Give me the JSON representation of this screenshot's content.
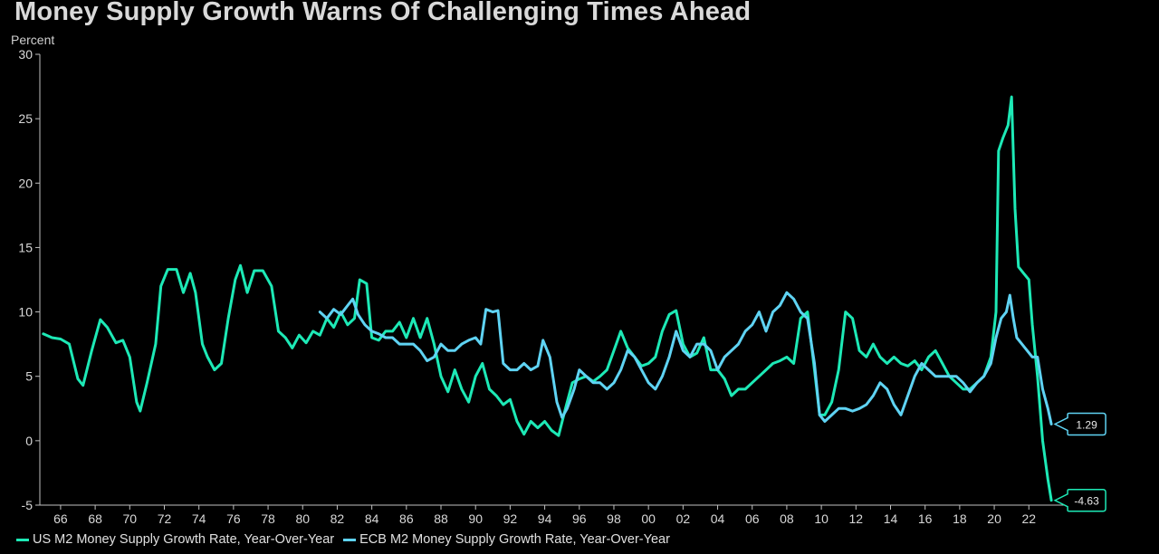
{
  "title": "Money Supply Growth Warns Of Challenging Times Ahead",
  "chart_data": {
    "type": "line",
    "title": "Money Supply Growth Warns Of Challenging Times Ahead",
    "ylabel": "Percent",
    "xlabel": "",
    "ylim": [
      -5,
      30
    ],
    "yticks": [
      30,
      25,
      20,
      15,
      10,
      5,
      0,
      -5
    ],
    "xlim": [
      1964.8,
      2024.5
    ],
    "xticks": [
      1966,
      1968,
      1970,
      1972,
      1974,
      1976,
      1978,
      1980,
      1982,
      1984,
      1986,
      1988,
      1990,
      1992,
      1994,
      1996,
      1998,
      2000,
      2002,
      2004,
      2006,
      2008,
      2010,
      2012,
      2014,
      2016,
      2018,
      2020,
      2022
    ],
    "xtick_labels": [
      "66",
      "68",
      "70",
      "72",
      "74",
      "76",
      "78",
      "80",
      "82",
      "84",
      "86",
      "88",
      "90",
      "92",
      "94",
      "96",
      "98",
      "00",
      "02",
      "04",
      "06",
      "08",
      "10",
      "12",
      "14",
      "16",
      "18",
      "20",
      "22"
    ],
    "grid": false,
    "legend_position": "bottom-left",
    "series": [
      {
        "name": "US M2 Money Supply Growth Rate, Year-Over-Year",
        "color": "#1de9b6",
        "last_value_label": "-4.63",
        "points": [
          [
            1965.0,
            8.3
          ],
          [
            1965.5,
            8.0
          ],
          [
            1966.0,
            7.9
          ],
          [
            1966.5,
            7.5
          ],
          [
            1967.0,
            4.8
          ],
          [
            1967.3,
            4.3
          ],
          [
            1967.8,
            7.0
          ],
          [
            1968.3,
            9.4
          ],
          [
            1968.7,
            8.8
          ],
          [
            1969.2,
            7.6
          ],
          [
            1969.6,
            7.8
          ],
          [
            1970.0,
            6.5
          ],
          [
            1970.4,
            3.0
          ],
          [
            1970.6,
            2.3
          ],
          [
            1971.0,
            4.5
          ],
          [
            1971.5,
            7.5
          ],
          [
            1971.8,
            12.0
          ],
          [
            1972.2,
            13.3
          ],
          [
            1972.7,
            13.3
          ],
          [
            1973.1,
            11.5
          ],
          [
            1973.5,
            13.0
          ],
          [
            1973.8,
            11.5
          ],
          [
            1974.2,
            7.5
          ],
          [
            1974.5,
            6.5
          ],
          [
            1974.9,
            5.5
          ],
          [
            1975.3,
            6.0
          ],
          [
            1975.7,
            9.5
          ],
          [
            1976.1,
            12.5
          ],
          [
            1976.4,
            13.6
          ],
          [
            1976.8,
            11.5
          ],
          [
            1977.2,
            13.2
          ],
          [
            1977.7,
            13.2
          ],
          [
            1978.2,
            12.0
          ],
          [
            1978.6,
            8.5
          ],
          [
            1979.0,
            8.0
          ],
          [
            1979.4,
            7.2
          ],
          [
            1979.8,
            8.2
          ],
          [
            1980.2,
            7.6
          ],
          [
            1980.6,
            8.5
          ],
          [
            1981.0,
            8.2
          ],
          [
            1981.4,
            9.5
          ],
          [
            1981.8,
            8.8
          ],
          [
            1982.2,
            10.0
          ],
          [
            1982.6,
            9.0
          ],
          [
            1983.0,
            9.5
          ],
          [
            1983.3,
            12.5
          ],
          [
            1983.7,
            12.2
          ],
          [
            1984.0,
            8.0
          ],
          [
            1984.4,
            7.8
          ],
          [
            1984.8,
            8.5
          ],
          [
            1985.2,
            8.5
          ],
          [
            1985.6,
            9.2
          ],
          [
            1986.0,
            8.0
          ],
          [
            1986.4,
            9.5
          ],
          [
            1986.8,
            8.0
          ],
          [
            1987.2,
            9.5
          ],
          [
            1987.6,
            7.5
          ],
          [
            1988.0,
            5.0
          ],
          [
            1988.4,
            3.8
          ],
          [
            1988.8,
            5.5
          ],
          [
            1989.2,
            4.0
          ],
          [
            1989.6,
            3.0
          ],
          [
            1990.0,
            5.0
          ],
          [
            1990.4,
            6.0
          ],
          [
            1990.8,
            4.0
          ],
          [
            1991.2,
            3.5
          ],
          [
            1991.6,
            2.8
          ],
          [
            1992.0,
            3.2
          ],
          [
            1992.4,
            1.5
          ],
          [
            1992.8,
            0.5
          ],
          [
            1993.2,
            1.5
          ],
          [
            1993.6,
            1.0
          ],
          [
            1994.0,
            1.5
          ],
          [
            1994.4,
            0.8
          ],
          [
            1994.8,
            0.4
          ],
          [
            1995.2,
            2.5
          ],
          [
            1995.6,
            4.5
          ],
          [
            1996.0,
            4.8
          ],
          [
            1996.4,
            5.0
          ],
          [
            1996.8,
            4.6
          ],
          [
            1997.2,
            5.0
          ],
          [
            1997.6,
            5.5
          ],
          [
            1998.0,
            7.0
          ],
          [
            1998.4,
            8.5
          ],
          [
            1998.8,
            7.2
          ],
          [
            1999.2,
            6.5
          ],
          [
            1999.6,
            5.8
          ],
          [
            2000.0,
            6.0
          ],
          [
            2000.4,
            6.5
          ],
          [
            2000.8,
            8.5
          ],
          [
            2001.2,
            9.8
          ],
          [
            2001.6,
            10.1
          ],
          [
            2002.0,
            7.5
          ],
          [
            2002.4,
            6.5
          ],
          [
            2002.8,
            6.8
          ],
          [
            2003.2,
            8.0
          ],
          [
            2003.6,
            5.5
          ],
          [
            2004.0,
            5.5
          ],
          [
            2004.4,
            4.8
          ],
          [
            2004.8,
            3.5
          ],
          [
            2005.2,
            4.0
          ],
          [
            2005.6,
            4.0
          ],
          [
            2006.0,
            4.5
          ],
          [
            2006.4,
            5.0
          ],
          [
            2006.8,
            5.5
          ],
          [
            2007.2,
            6.0
          ],
          [
            2007.6,
            6.2
          ],
          [
            2008.0,
            6.5
          ],
          [
            2008.4,
            6.0
          ],
          [
            2008.8,
            9.5
          ],
          [
            2009.2,
            10.0
          ],
          [
            2009.6,
            5.5
          ],
          [
            2009.9,
            2.0
          ],
          [
            2010.2,
            2.0
          ],
          [
            2010.6,
            3.0
          ],
          [
            2011.0,
            5.5
          ],
          [
            2011.4,
            10.0
          ],
          [
            2011.8,
            9.5
          ],
          [
            2012.2,
            7.0
          ],
          [
            2012.6,
            6.5
          ],
          [
            2013.0,
            7.5
          ],
          [
            2013.4,
            6.5
          ],
          [
            2013.8,
            6.0
          ],
          [
            2014.2,
            6.5
          ],
          [
            2014.6,
            6.0
          ],
          [
            2015.0,
            5.8
          ],
          [
            2015.4,
            6.2
          ],
          [
            2015.8,
            5.5
          ],
          [
            2016.2,
            6.5
          ],
          [
            2016.6,
            7.0
          ],
          [
            2017.0,
            6.0
          ],
          [
            2017.4,
            5.0
          ],
          [
            2017.8,
            4.5
          ],
          [
            2018.2,
            4.0
          ],
          [
            2018.6,
            4.0
          ],
          [
            2019.0,
            4.5
          ],
          [
            2019.4,
            5.0
          ],
          [
            2019.8,
            6.5
          ],
          [
            2020.1,
            10.0
          ],
          [
            2020.25,
            22.5
          ],
          [
            2020.5,
            23.5
          ],
          [
            2020.8,
            24.5
          ],
          [
            2021.0,
            26.7
          ],
          [
            2021.2,
            18.0
          ],
          [
            2021.4,
            13.5
          ],
          [
            2021.7,
            13.0
          ],
          [
            2022.0,
            12.5
          ],
          [
            2022.2,
            9.0
          ],
          [
            2022.5,
            5.0
          ],
          [
            2022.8,
            0.0
          ],
          [
            2023.1,
            -3.0
          ],
          [
            2023.3,
            -4.63
          ]
        ]
      },
      {
        "name": "ECB M2 Money Supply Growth Rate, Year-Over-Year",
        "color": "#5fd3f3",
        "last_value_label": "1.29",
        "points": [
          [
            1981.0,
            10.0
          ],
          [
            1981.4,
            9.5
          ],
          [
            1981.8,
            10.2
          ],
          [
            1982.2,
            9.8
          ],
          [
            1982.6,
            10.5
          ],
          [
            1982.9,
            11.0
          ],
          [
            1983.2,
            9.8
          ],
          [
            1983.6,
            9.0
          ],
          [
            1984.0,
            8.5
          ],
          [
            1984.4,
            8.3
          ],
          [
            1984.8,
            8.0
          ],
          [
            1985.2,
            8.0
          ],
          [
            1985.6,
            7.5
          ],
          [
            1986.0,
            7.5
          ],
          [
            1986.4,
            7.5
          ],
          [
            1986.8,
            7.0
          ],
          [
            1987.2,
            6.2
          ],
          [
            1987.6,
            6.5
          ],
          [
            1988.0,
            7.5
          ],
          [
            1988.4,
            7.0
          ],
          [
            1988.8,
            7.0
          ],
          [
            1989.2,
            7.5
          ],
          [
            1989.6,
            7.8
          ],
          [
            1990.0,
            8.0
          ],
          [
            1990.3,
            7.5
          ],
          [
            1990.6,
            10.2
          ],
          [
            1991.0,
            10.0
          ],
          [
            1991.3,
            10.1
          ],
          [
            1991.6,
            6.0
          ],
          [
            1992.0,
            5.5
          ],
          [
            1992.4,
            5.5
          ],
          [
            1992.8,
            6.0
          ],
          [
            1993.2,
            5.5
          ],
          [
            1993.6,
            5.8
          ],
          [
            1993.9,
            7.8
          ],
          [
            1994.3,
            6.5
          ],
          [
            1994.7,
            3.0
          ],
          [
            1995.0,
            1.8
          ],
          [
            1995.3,
            2.5
          ],
          [
            1995.7,
            4.0
          ],
          [
            1996.0,
            5.5
          ],
          [
            1996.4,
            5.0
          ],
          [
            1996.8,
            4.5
          ],
          [
            1997.2,
            4.5
          ],
          [
            1997.6,
            4.0
          ],
          [
            1998.0,
            4.5
          ],
          [
            1998.4,
            5.5
          ],
          [
            1998.8,
            7.0
          ],
          [
            1999.2,
            6.5
          ],
          [
            1999.6,
            5.5
          ],
          [
            2000.0,
            4.5
          ],
          [
            2000.4,
            4.0
          ],
          [
            2000.8,
            5.0
          ],
          [
            2001.2,
            6.5
          ],
          [
            2001.6,
            8.5
          ],
          [
            2002.0,
            7.0
          ],
          [
            2002.4,
            6.5
          ],
          [
            2002.8,
            7.5
          ],
          [
            2003.2,
            7.5
          ],
          [
            2003.6,
            7.0
          ],
          [
            2004.0,
            5.5
          ],
          [
            2004.4,
            6.5
          ],
          [
            2004.8,
            7.0
          ],
          [
            2005.2,
            7.5
          ],
          [
            2005.6,
            8.5
          ],
          [
            2006.0,
            9.0
          ],
          [
            2006.4,
            10.0
          ],
          [
            2006.8,
            8.5
          ],
          [
            2007.2,
            10.0
          ],
          [
            2007.6,
            10.5
          ],
          [
            2008.0,
            11.5
          ],
          [
            2008.4,
            11.0
          ],
          [
            2008.8,
            10.0
          ],
          [
            2009.2,
            9.5
          ],
          [
            2009.6,
            6.0
          ],
          [
            2009.9,
            2.0
          ],
          [
            2010.2,
            1.5
          ],
          [
            2010.6,
            2.0
          ],
          [
            2011.0,
            2.5
          ],
          [
            2011.4,
            2.5
          ],
          [
            2011.8,
            2.3
          ],
          [
            2012.2,
            2.5
          ],
          [
            2012.6,
            2.8
          ],
          [
            2013.0,
            3.5
          ],
          [
            2013.4,
            4.5
          ],
          [
            2013.8,
            4.0
          ],
          [
            2014.2,
            2.8
          ],
          [
            2014.6,
            2.0
          ],
          [
            2015.0,
            3.5
          ],
          [
            2015.4,
            5.0
          ],
          [
            2015.8,
            6.0
          ],
          [
            2016.2,
            5.5
          ],
          [
            2016.6,
            5.0
          ],
          [
            2017.0,
            5.0
          ],
          [
            2017.4,
            5.0
          ],
          [
            2017.8,
            5.0
          ],
          [
            2018.2,
            4.5
          ],
          [
            2018.6,
            3.8
          ],
          [
            2019.0,
            4.5
          ],
          [
            2019.4,
            5.0
          ],
          [
            2019.8,
            6.0
          ],
          [
            2020.1,
            8.0
          ],
          [
            2020.4,
            9.5
          ],
          [
            2020.7,
            10.0
          ],
          [
            2020.9,
            11.3
          ],
          [
            2021.1,
            9.5
          ],
          [
            2021.3,
            8.0
          ],
          [
            2021.6,
            7.5
          ],
          [
            2021.9,
            7.0
          ],
          [
            2022.2,
            6.5
          ],
          [
            2022.5,
            6.5
          ],
          [
            2022.8,
            4.0
          ],
          [
            2023.1,
            2.5
          ],
          [
            2023.3,
            1.29
          ]
        ]
      }
    ]
  }
}
